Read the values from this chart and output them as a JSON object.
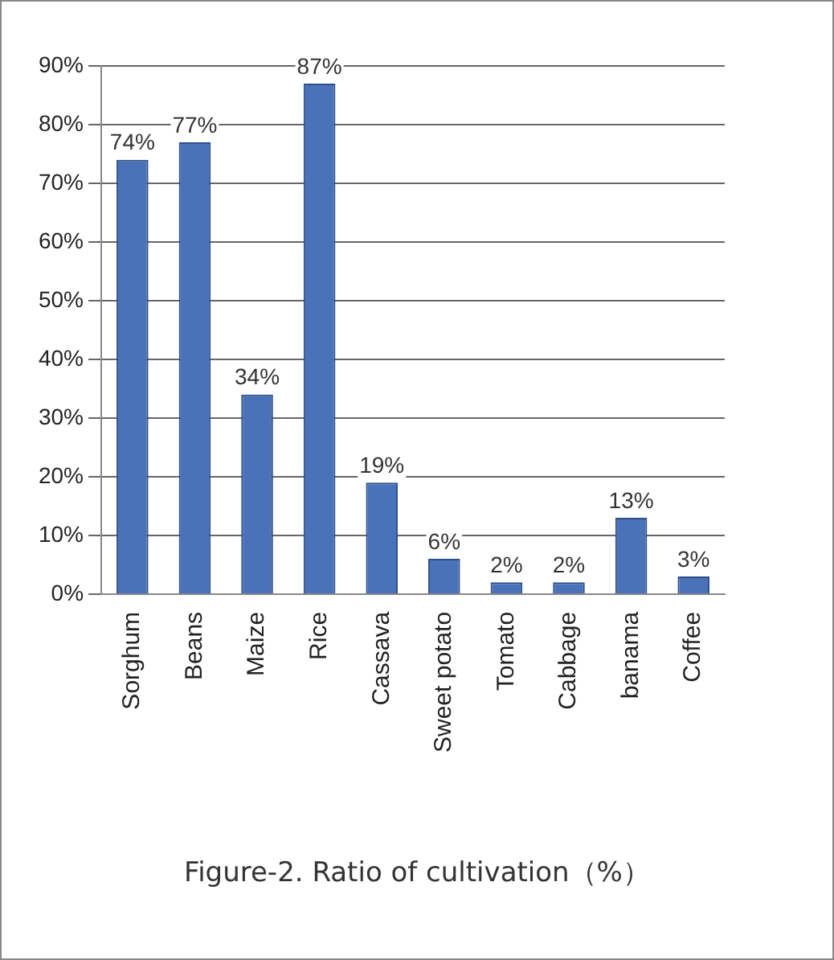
{
  "chart_data": {
    "type": "bar",
    "categories": [
      "Sorghum",
      "Beans",
      "Maize",
      "Rice",
      "Cassava",
      "Sweet potato",
      "Tomato",
      "Cabbage",
      "banama",
      "Coffee"
    ],
    "values": [
      74,
      77,
      34,
      87,
      19,
      6,
      2,
      2,
      13,
      3
    ],
    "color": "#4a72b8",
    "ylim": [
      0,
      90
    ],
    "yticks": [
      {
        "value": 0,
        "label": "0%"
      },
      {
        "value": 10,
        "label": "10%"
      },
      {
        "value": 20,
        "label": "20%"
      },
      {
        "value": 30,
        "label": "30%"
      },
      {
        "value": 40,
        "label": "40%"
      },
      {
        "value": 50,
        "label": "50%"
      },
      {
        "value": 60,
        "label": "60%"
      },
      {
        "value": 70,
        "label": "70%"
      },
      {
        "value": 80,
        "label": "80%"
      },
      {
        "value": 90,
        "label": "90%"
      }
    ],
    "value_labels": [
      "74%",
      "77%",
      "34%",
      "87%",
      "19%",
      "6%",
      "2%",
      "2%",
      "13%",
      "3%"
    ],
    "grid": "y",
    "annotations": [
      "Figure-2.  Ratio of cultivation（%）"
    ]
  }
}
